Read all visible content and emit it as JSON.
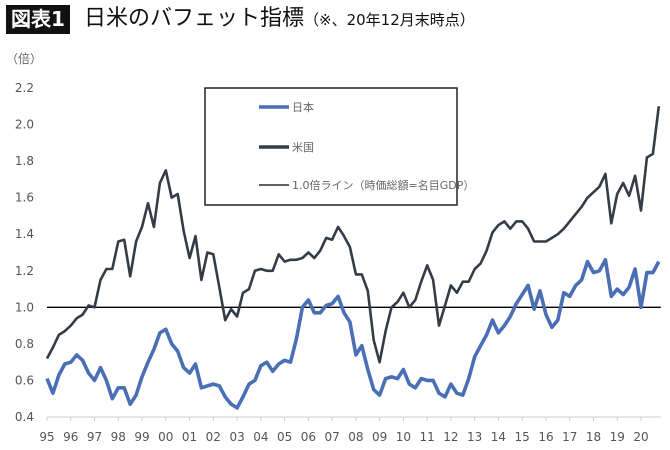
{
  "header": {
    "badge": "図表1",
    "title": "日米のバフェット指標",
    "note": "（※、20年12月末時点）"
  },
  "chart_data": {
    "type": "line",
    "title": "日米のバフェット指標",
    "ylabel": "（倍）",
    "ylim": [
      0.4,
      2.2
    ],
    "yticks": [
      "0.4",
      "0.6",
      "0.8",
      "1.0",
      "1.2",
      "1.4",
      "1.6",
      "1.8",
      "2.0",
      "2.2"
    ],
    "xticks": [
      "95",
      "96",
      "97",
      "98",
      "99",
      "00",
      "01",
      "02",
      "03",
      "04",
      "05",
      "06",
      "07",
      "08",
      "09",
      "10",
      "11",
      "12",
      "13",
      "14",
      "15",
      "16",
      "17",
      "18",
      "19",
      "20"
    ],
    "x_start": "1995-Q1",
    "x_frequency": "quarterly",
    "x_end": "2020-Q4",
    "grid": false,
    "legend_position": "top-center",
    "reference_line": {
      "name": "1.0倍ライン（時価総額=名目GDP）",
      "value": 1.0,
      "color": "#000000"
    },
    "series": [
      {
        "name": "日本",
        "color": "#4a6fb5",
        "values": [
          0.61,
          0.53,
          0.63,
          0.69,
          0.7,
          0.74,
          0.71,
          0.64,
          0.6,
          0.67,
          0.6,
          0.5,
          0.56,
          0.56,
          0.47,
          0.52,
          0.62,
          0.7,
          0.77,
          0.86,
          0.88,
          0.8,
          0.76,
          0.67,
          0.64,
          0.69,
          0.56,
          0.57,
          0.58,
          0.57,
          0.51,
          0.47,
          0.45,
          0.51,
          0.58,
          0.6,
          0.68,
          0.7,
          0.65,
          0.69,
          0.71,
          0.7,
          0.83,
          1.0,
          1.04,
          0.97,
          0.97,
          1.01,
          1.02,
          1.06,
          0.97,
          0.92,
          0.74,
          0.79,
          0.66,
          0.55,
          0.52,
          0.61,
          0.62,
          0.61,
          0.66,
          0.58,
          0.56,
          0.61,
          0.6,
          0.6,
          0.53,
          0.51,
          0.58,
          0.53,
          0.52,
          0.61,
          0.73,
          0.79,
          0.85,
          0.93,
          0.86,
          0.9,
          0.95,
          1.02,
          1.07,
          1.12,
          0.99,
          1.09,
          0.96,
          0.89,
          0.93,
          1.08,
          1.06,
          1.12,
          1.15,
          1.25,
          1.19,
          1.2,
          1.26,
          1.06,
          1.1,
          1.07,
          1.11,
          1.21,
          1.0,
          1.19,
          1.19,
          1.25
        ]
      },
      {
        "name": "米国",
        "color": "#333c47",
        "values": [
          0.72,
          0.78,
          0.85,
          0.87,
          0.9,
          0.94,
          0.96,
          1.01,
          1.0,
          1.15,
          1.21,
          1.21,
          1.36,
          1.37,
          1.17,
          1.36,
          1.44,
          1.57,
          1.44,
          1.68,
          1.75,
          1.6,
          1.62,
          1.42,
          1.27,
          1.39,
          1.15,
          1.3,
          1.29,
          1.11,
          0.93,
          0.99,
          0.95,
          1.08,
          1.1,
          1.2,
          1.21,
          1.2,
          1.2,
          1.29,
          1.25,
          1.26,
          1.26,
          1.27,
          1.3,
          1.27,
          1.31,
          1.38,
          1.37,
          1.44,
          1.39,
          1.33,
          1.18,
          1.18,
          1.09,
          0.82,
          0.7,
          0.87,
          1.0,
          1.03,
          1.08,
          1.0,
          1.04,
          1.14,
          1.23,
          1.15,
          0.9,
          1.01,
          1.12,
          1.08,
          1.14,
          1.14,
          1.21,
          1.24,
          1.31,
          1.41,
          1.45,
          1.47,
          1.43,
          1.47,
          1.47,
          1.43,
          1.36,
          1.36,
          1.36,
          1.38,
          1.4,
          1.43,
          1.47,
          1.51,
          1.55,
          1.6,
          1.63,
          1.66,
          1.73,
          1.46,
          1.62,
          1.68,
          1.61,
          1.72,
          1.53,
          1.82,
          1.84,
          2.1
        ]
      }
    ]
  }
}
